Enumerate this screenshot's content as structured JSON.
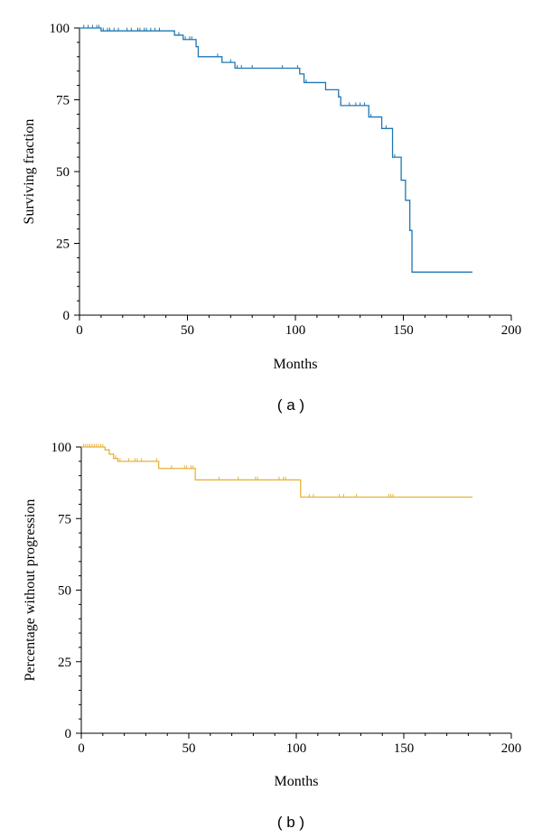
{
  "colors": {
    "panel_a": "#1f77b4",
    "panel_b": "#e8b23a"
  },
  "chart_data": [
    {
      "type": "line",
      "step": true,
      "panel_label": "( a )",
      "xlabel": "Months",
      "ylabel": "Surviving fraction",
      "xlim": [
        0,
        200
      ],
      "ylim": [
        0,
        100
      ],
      "xticks": [
        0,
        50,
        100,
        150,
        200
      ],
      "yticks": [
        0,
        25,
        50,
        75,
        100
      ],
      "x_end": 182,
      "steps": [
        [
          0,
          100
        ],
        [
          10,
          99
        ],
        [
          40,
          99
        ],
        [
          44,
          97.5
        ],
        [
          48,
          96
        ],
        [
          54,
          93.5
        ],
        [
          55,
          90
        ],
        [
          66,
          88
        ],
        [
          72,
          86
        ],
        [
          102,
          84
        ],
        [
          104,
          81
        ],
        [
          114,
          78.5
        ],
        [
          120,
          76
        ],
        [
          121,
          73
        ],
        [
          134,
          69
        ],
        [
          140,
          65
        ],
        [
          145,
          55
        ],
        [
          149,
          47
        ],
        [
          151,
          40
        ],
        [
          153,
          29.5
        ],
        [
          154,
          15
        ]
      ],
      "censored": [
        2,
        4,
        6,
        8,
        9,
        10,
        11,
        13,
        14,
        16,
        18,
        22,
        24,
        27,
        28,
        30,
        31,
        33,
        35,
        37,
        46,
        49,
        51,
        52,
        64,
        70,
        73,
        75,
        80,
        94,
        101,
        105,
        120,
        121,
        125,
        128,
        130,
        132,
        135,
        142,
        146,
        153
      ]
    },
    {
      "type": "line",
      "step": true,
      "panel_label": "( b )",
      "xlabel": "Months",
      "ylabel": "Percentage without progression",
      "xlim": [
        0,
        200
      ],
      "ylim": [
        0,
        100
      ],
      "xticks": [
        0,
        50,
        100,
        150,
        200
      ],
      "yticks": [
        0,
        25,
        50,
        75,
        100
      ],
      "x_end": 182,
      "steps": [
        [
          0,
          100
        ],
        [
          11,
          99
        ],
        [
          13,
          97.5
        ],
        [
          15,
          96
        ],
        [
          17,
          95
        ],
        [
          36,
          92.5
        ],
        [
          53,
          88.5
        ],
        [
          102,
          82.5
        ]
      ],
      "censored": [
        1,
        2,
        3,
        4,
        5,
        6,
        7,
        8,
        9,
        10,
        16,
        18,
        22,
        25,
        26,
        28,
        35,
        42,
        48,
        49,
        51,
        52,
        64,
        73,
        81,
        82,
        92,
        94,
        95,
        106,
        108,
        120,
        122,
        128,
        143,
        144,
        145
      ]
    }
  ]
}
